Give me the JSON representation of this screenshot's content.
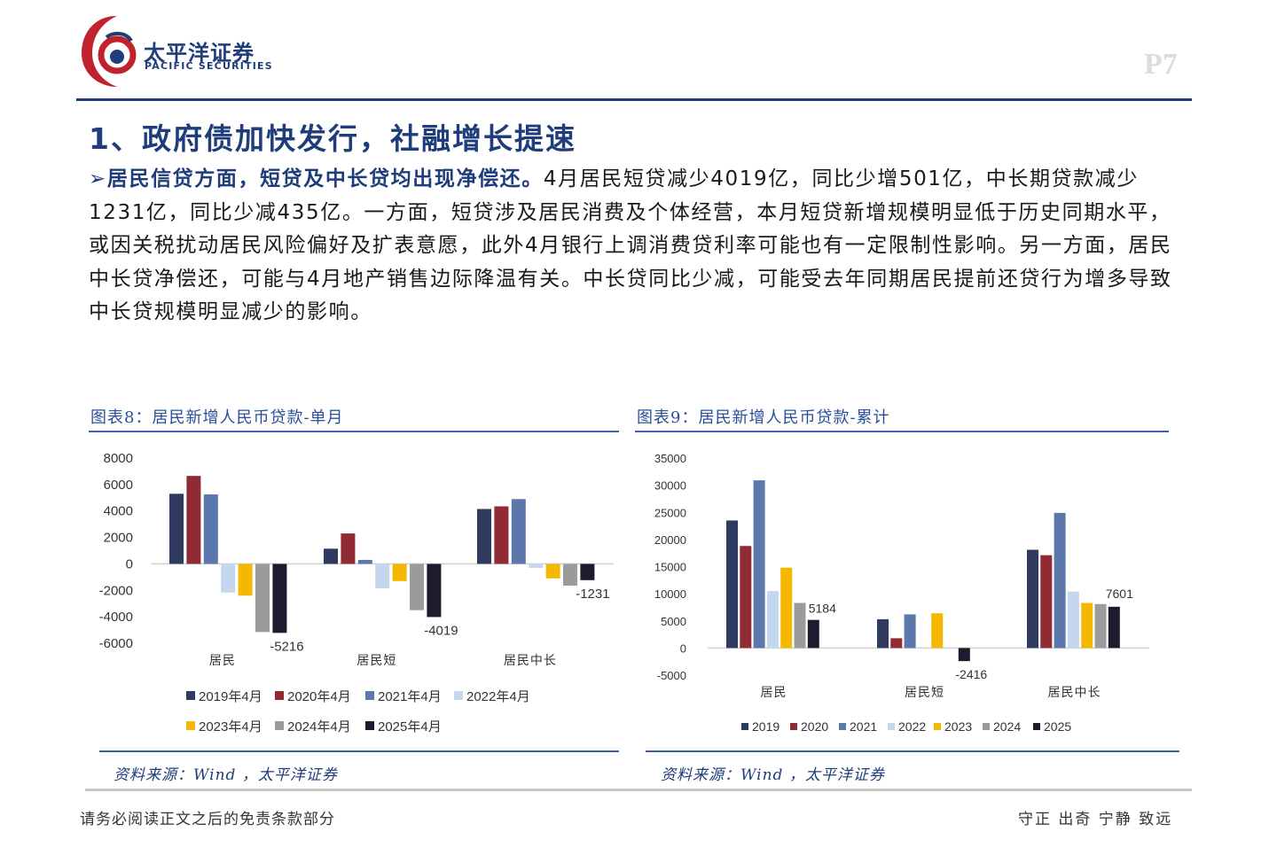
{
  "brand": {
    "name_cn": "太平洋证券",
    "name_en": "PACIFIC SECURITIES",
    "logo_color": "#c0232d",
    "brand_color": "#1f3d7a"
  },
  "page_number": "P7",
  "title": "1、政府债加快发行，社融增长提速",
  "body": {
    "bullet": "➢",
    "highlight": "居民信贷方面，短贷及中长贷均出现净偿还。",
    "text": "4月居民短贷减少4019亿，同比少增501亿，中长期贷款减少1231亿，同比少减435亿。一方面，短贷涉及居民消费及个体经营，本月短贷新增规模明显低于历史同期水平，或因关税扰动居民风险偏好及扩表意愿，此外4月银行上调消费贷利率可能也有一定限制性影响。另一方面，居民中长贷净偿还，可能与4月地产销售边际降温有关。中长贷同比少减，可能受去年同期居民提前还贷行为增多导致中长贷规模明显减少的影响。"
  },
  "figures": [
    {
      "title": "图表8：居民新增人民币贷款-单月",
      "source": "资料来源：Wind ，太平洋证券"
    },
    {
      "title": "图表9：居民新增人民币贷款-累计",
      "source": "资料来源：Wind ，太平洋证券"
    }
  ],
  "footer": {
    "left": "请务必阅读正文之后的免责条款部分",
    "right": "守正 出奇 宁静 致远"
  },
  "chart_data": [
    {
      "type": "bar",
      "title": "图表8：居民新增人民币贷款-单月",
      "categories": [
        "居民",
        "居民短",
        "居民中长"
      ],
      "series": [
        {
          "name": "2019年4月",
          "color": "#2e3a5f",
          "values": [
            5300,
            1150,
            4150
          ]
        },
        {
          "name": "2020年4月",
          "color": "#912b33",
          "values": [
            6650,
            2300,
            4350
          ]
        },
        {
          "name": "2021年4月",
          "color": "#5b77ab",
          "values": [
            5250,
            300,
            4900
          ]
        },
        {
          "name": "2022年4月",
          "color": "#c5d7ef",
          "values": [
            -2170,
            -1850,
            -300
          ]
        },
        {
          "name": "2023年4月",
          "color": "#f5b800",
          "values": [
            -2400,
            -1300,
            -1100
          ]
        },
        {
          "name": "2024年4月",
          "color": "#9b9b9b",
          "values": [
            -5150,
            -3500,
            -1650
          ]
        },
        {
          "name": "2025年4月",
          "color": "#1c1c2e",
          "values": [
            -5216,
            -4019,
            -1231
          ]
        }
      ],
      "data_labels": [
        {
          "category": "居民",
          "series": "2025年4月",
          "text": "-5216"
        },
        {
          "category": "居民短",
          "series": "2025年4月",
          "text": "-4019"
        },
        {
          "category": "居民中长",
          "series": "2025年4月",
          "text": "-1231"
        }
      ],
      "yticks": [
        "8000",
        "6000",
        "4000",
        "2000",
        "0",
        "-2000",
        "-4000",
        "-6000"
      ],
      "ylim": [
        -6000,
        8000
      ],
      "legend_position": "bottom",
      "grid": false
    },
    {
      "type": "bar",
      "title": "图表9：居民新增人民币贷款-累计",
      "categories": [
        "居民",
        "居民短",
        "居民中长"
      ],
      "series": [
        {
          "name": "2019",
          "color": "#2e3a5f",
          "values": [
            23500,
            5300,
            18100
          ]
        },
        {
          "name": "2020",
          "color": "#912b33",
          "values": [
            18800,
            1800,
            17100
          ]
        },
        {
          "name": "2021",
          "color": "#5b77ab",
          "values": [
            30900,
            6200,
            24900
          ]
        },
        {
          "name": "2022",
          "color": "#c5d7ef",
          "values": [
            10500,
            0,
            10400
          ]
        },
        {
          "name": "2023",
          "color": "#f5b800",
          "values": [
            14800,
            6400,
            8300
          ]
        },
        {
          "name": "2024",
          "color": "#9b9b9b",
          "values": [
            8300,
            0,
            8100
          ]
        },
        {
          "name": "2025",
          "color": "#1c1c2e",
          "values": [
            5184,
            -2416,
            7601
          ]
        }
      ],
      "data_labels": [
        {
          "category": "居民",
          "series": "2025",
          "text": "5184"
        },
        {
          "category": "居民短",
          "series": "2025",
          "text": "-2416"
        },
        {
          "category": "居民中长",
          "series": "2025",
          "text": "7601"
        }
      ],
      "yticks": [
        "35000",
        "30000",
        "25000",
        "20000",
        "15000",
        "10000",
        "5000",
        "0",
        "-5000"
      ],
      "ylim": [
        -5000,
        35000
      ],
      "legend_position": "bottom",
      "grid": false
    }
  ]
}
